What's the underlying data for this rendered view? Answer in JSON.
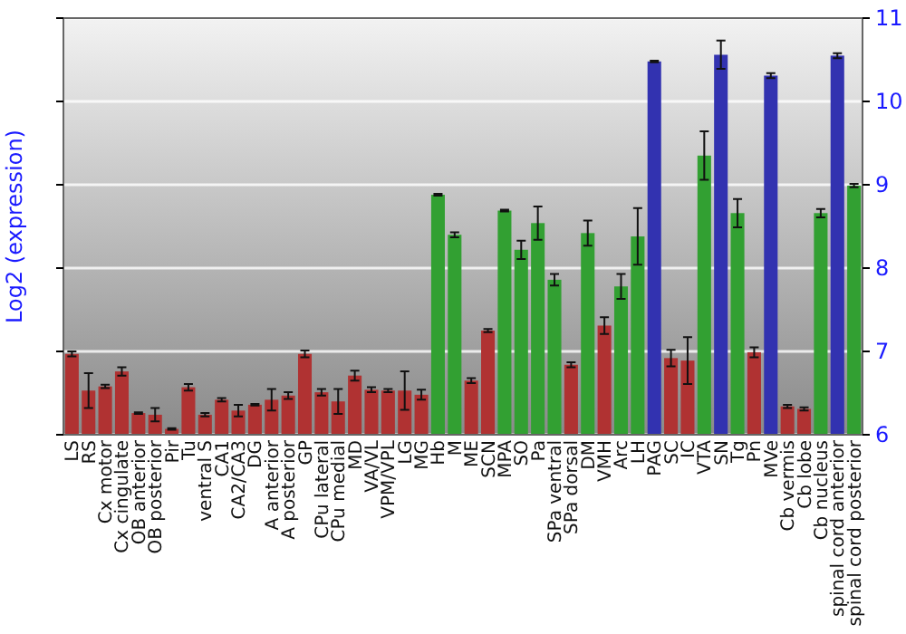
{
  "chart_data": {
    "type": "bar",
    "ylabel": "Log2 (expression)",
    "categories": [
      "LS",
      "RS",
      "Cx motor",
      "Cx cingulate",
      "OB anterior",
      "OB posterior",
      "Pir",
      "Tu",
      "ventral S",
      "CA1",
      "CA2/CA3",
      "DG",
      "A anterior",
      "A posterior",
      "GP",
      "CPu lateral",
      "CPu medial",
      "MD",
      "VA/VL",
      "VPM/VPL",
      "LG",
      "MG",
      "Hb",
      "M",
      "ME",
      "SCN",
      "MPA",
      "SO",
      "Pa",
      "SPa ventral",
      "SPa dorsal",
      "DM",
      "VMH",
      "Arc",
      "LH",
      "PAG",
      "SC",
      "IC",
      "VTA",
      "SN",
      "Tg",
      "Pn",
      "MVe",
      "Cb vermis",
      "Cb lobe",
      "Cb nucleus",
      "spinal cord anterior",
      "spinal cord posterior"
    ],
    "values": [
      6.97,
      6.53,
      6.58,
      6.76,
      6.26,
      6.24,
      6.07,
      6.57,
      6.24,
      6.42,
      6.29,
      6.36,
      6.42,
      6.47,
      6.97,
      6.51,
      6.4,
      6.71,
      6.54,
      6.53,
      6.53,
      6.48,
      8.88,
      8.4,
      6.65,
      7.25,
      8.69,
      8.22,
      8.54,
      7.86,
      6.84,
      8.42,
      7.31,
      7.78,
      8.38,
      10.48,
      6.92,
      6.89,
      9.35,
      10.56,
      8.66,
      6.99,
      10.31,
      6.34,
      6.31,
      8.66,
      10.55,
      8.99
    ],
    "errors": [
      0.03,
      0.21,
      0.02,
      0.05,
      0.01,
      0.08,
      0.01,
      0.04,
      0.02,
      0.02,
      0.07,
      0.01,
      0.13,
      0.04,
      0.04,
      0.04,
      0.15,
      0.06,
      0.03,
      0.02,
      0.23,
      0.06,
      0.01,
      0.03,
      0.03,
      0.02,
      0.01,
      0.11,
      0.2,
      0.07,
      0.03,
      0.15,
      0.1,
      0.15,
      0.34,
      0.01,
      0.1,
      0.28,
      0.29,
      0.17,
      0.17,
      0.06,
      0.03,
      0.02,
      0.02,
      0.05,
      0.03,
      0.02
    ],
    "colors": [
      "#b03232",
      "#b03232",
      "#b03232",
      "#b03232",
      "#b03232",
      "#b03232",
      "#b03232",
      "#b03232",
      "#b03232",
      "#b03232",
      "#b03232",
      "#b03232",
      "#b03232",
      "#b03232",
      "#b03232",
      "#b03232",
      "#b03232",
      "#b03232",
      "#b03232",
      "#b03232",
      "#b03232",
      "#b03232",
      "#32a032",
      "#32a032",
      "#b03232",
      "#b03232",
      "#32a032",
      "#32a032",
      "#32a032",
      "#32a032",
      "#b03232",
      "#32a032",
      "#b03232",
      "#32a032",
      "#32a032",
      "#3232b0",
      "#b03232",
      "#b03232",
      "#32a032",
      "#3232b0",
      "#32a032",
      "#b03232",
      "#3232b0",
      "#b03232",
      "#b03232",
      "#32a032",
      "#3232b0",
      "#32a032"
    ],
    "ylim": [
      6,
      11
    ],
    "yticks": [
      6,
      7,
      8,
      9,
      10,
      11
    ],
    "grid": "y"
  }
}
